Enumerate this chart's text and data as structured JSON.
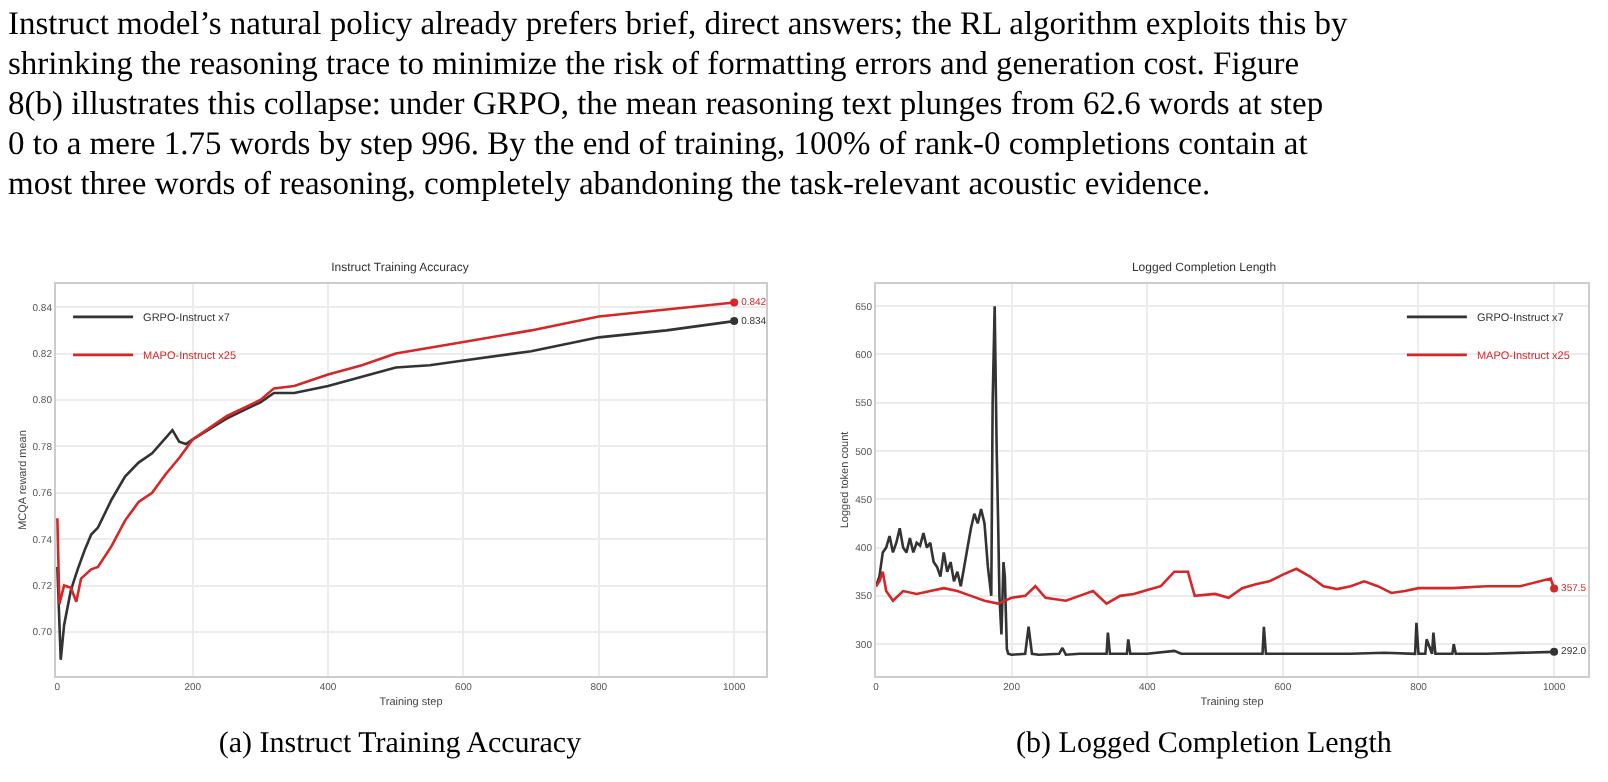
{
  "chart_data": [
    {
      "type": "other",
      "annotations": [
        "Instruct model’s natural policy already prefers brief, direct answers; the RL algorithm exploits this by",
        "shrinking the reasoning trace to minimize the risk of formatting errors and generation cost. Figure",
        "8(b) illustrates this collapse: under GRPO, the mean reasoning text plunges from 62.6 words at step",
        "0 to a mere 1.75 words by step 996. By the end of training, 100% of rank-0 completions contain at",
        "most three words of reasoning, completely abandoning the task-relevant acoustic evidence."
      ]
    },
    {
      "type": "line",
      "title": "Instruct Training Accuracy",
      "xlabel": "Training step",
      "ylabel": "MCQA reward mean",
      "annotations": [
        "(a) Instruct Training Accuracy"
      ],
      "xlim": [
        -2,
        1047
      ],
      "xticks": [
        0,
        200,
        400,
        600,
        800,
        1000
      ],
      "ylim": [
        0.681,
        0.85
      ],
      "yticks": [
        {
          "value": 0.7,
          "label": "0.70"
        },
        {
          "value": 0.72,
          "label": "0.72"
        },
        {
          "value": 0.74,
          "label": "0.74"
        },
        {
          "value": 0.76,
          "label": "0.76"
        },
        {
          "value": 0.78,
          "label": "0.78"
        },
        {
          "value": 0.8,
          "label": "0.80"
        },
        {
          "value": 0.82,
          "label": "0.82"
        },
        {
          "value": 0.84,
          "label": "0.84"
        }
      ],
      "grid": true,
      "legend": "top left",
      "line_style": "solid",
      "series": [
        {
          "name": "GRPO-Instruct x7",
          "color": "#333333",
          "x": [
            0,
            5,
            10,
            20,
            30,
            40,
            50,
            60,
            80,
            100,
            120,
            140,
            170,
            180,
            190,
            200,
            250,
            300,
            320,
            350,
            400,
            450,
            500,
            550,
            600,
            700,
            800,
            900,
            1000
          ],
          "values": [
            0.728,
            0.688,
            0.703,
            0.718,
            0.727,
            0.735,
            0.742,
            0.745,
            0.757,
            0.767,
            0.773,
            0.777,
            0.787,
            0.782,
            0.781,
            0.783,
            0.792,
            0.799,
            0.803,
            0.803,
            0.806,
            0.81,
            0.814,
            0.815,
            0.817,
            0.821,
            0.827,
            0.83,
            0.834
          ],
          "value_labels": [
            null,
            null,
            null,
            null,
            null,
            null,
            null,
            null,
            null,
            null,
            null,
            null,
            null,
            null,
            null,
            null,
            null,
            null,
            null,
            null,
            null,
            null,
            null,
            null,
            null,
            null,
            null,
            null,
            "0.834"
          ]
        },
        {
          "name": "MAPO-Instruct x25",
          "color": "#d62728",
          "x": [
            0,
            3,
            10,
            20,
            28,
            35,
            50,
            60,
            80,
            100,
            120,
            140,
            160,
            180,
            200,
            250,
            300,
            320,
            350,
            400,
            450,
            500,
            600,
            700,
            800,
            900,
            1000
          ],
          "values": [
            0.749,
            0.712,
            0.72,
            0.719,
            0.713,
            0.723,
            0.727,
            0.728,
            0.737,
            0.748,
            0.756,
            0.76,
            0.768,
            0.775,
            0.783,
            0.793,
            0.8,
            0.805,
            0.806,
            0.811,
            0.815,
            0.82,
            0.825,
            0.83,
            0.836,
            0.839,
            0.842
          ],
          "value_labels": [
            null,
            null,
            null,
            null,
            null,
            null,
            null,
            null,
            null,
            null,
            null,
            null,
            null,
            null,
            null,
            null,
            null,
            null,
            null,
            null,
            null,
            null,
            null,
            null,
            null,
            null,
            "0.842"
          ]
        }
      ]
    },
    {
      "type": "line",
      "title": "Logged Completion Length",
      "xlabel": "Training step",
      "ylabel": "Logged token count",
      "annotations": [
        "(b) Logged Completion Length"
      ],
      "xlim": [
        0,
        1050
      ],
      "xticks": [
        0,
        200,
        400,
        600,
        800,
        1000
      ],
      "ylim": [
        267,
        673
      ],
      "yticks": [
        300,
        350,
        400,
        450,
        500,
        550,
        600,
        650
      ],
      "grid": true,
      "legend": "top right",
      "line_style": "solid",
      "series": [
        {
          "name": "GRPO-Instruct x7",
          "color": "#333333",
          "x": [
            0,
            5,
            10,
            15,
            20,
            25,
            30,
            35,
            40,
            45,
            50,
            55,
            60,
            65,
            70,
            75,
            80,
            85,
            90,
            95,
            100,
            105,
            110,
            115,
            120,
            125,
            130,
            135,
            140,
            145,
            150,
            155,
            160,
            165,
            170,
            172,
            175,
            178,
            180,
            182,
            185,
            188,
            190,
            193,
            195,
            200,
            220,
            225,
            230,
            240,
            270,
            275,
            280,
            300,
            340,
            342,
            345,
            370,
            372,
            375,
            400,
            440,
            450,
            500,
            570,
            572,
            575,
            600,
            700,
            750,
            795,
            797,
            800,
            810,
            812,
            820,
            822,
            825,
            850,
            852,
            855,
            900,
            1000
          ],
          "values": [
            360,
            370,
            395,
            400,
            412,
            395,
            405,
            420,
            400,
            395,
            410,
            395,
            405,
            402,
            415,
            400,
            405,
            385,
            380,
            370,
            395,
            375,
            385,
            365,
            375,
            360,
            380,
            400,
            420,
            435,
            425,
            440,
            425,
            380,
            350,
            550,
            650,
            500,
            430,
            350,
            310,
            385,
            370,
            295,
            290,
            289,
            290,
            318,
            290,
            289,
            290,
            296,
            289,
            290,
            290,
            312,
            290,
            290,
            305,
            290,
            290,
            293,
            290,
            290,
            290,
            318,
            290,
            290,
            290,
            291,
            290,
            322,
            290,
            290,
            305,
            290,
            312,
            290,
            290,
            300,
            290,
            290,
            292
          ],
          "value_labels": [
            null,
            null,
            null,
            null,
            null,
            null,
            null,
            null,
            null,
            null,
            null,
            null,
            null,
            null,
            null,
            null,
            null,
            null,
            null,
            null,
            null,
            null,
            null,
            null,
            null,
            null,
            null,
            null,
            null,
            null,
            null,
            null,
            null,
            null,
            null,
            null,
            null,
            null,
            null,
            null,
            null,
            null,
            null,
            null,
            null,
            null,
            null,
            null,
            null,
            null,
            null,
            null,
            null,
            null,
            null,
            null,
            null,
            null,
            null,
            null,
            null,
            null,
            null,
            null,
            null,
            null,
            null,
            null,
            null,
            null,
            null,
            null,
            null,
            null,
            null,
            null,
            null,
            null,
            null,
            null,
            null,
            null,
            "292.0"
          ]
        },
        {
          "name": "MAPO-Instruct x25",
          "color": "#d62728",
          "x": [
            0,
            5,
            10,
            15,
            25,
            40,
            60,
            80,
            100,
            120,
            140,
            160,
            180,
            200,
            220,
            235,
            250,
            280,
            300,
            320,
            340,
            360,
            380,
            400,
            420,
            440,
            460,
            470,
            500,
            520,
            540,
            560,
            580,
            600,
            620,
            640,
            660,
            680,
            700,
            720,
            740,
            760,
            780,
            800,
            850,
            900,
            950,
            995,
            1000
          ],
          "values": [
            360,
            365,
            375,
            355,
            345,
            355,
            352,
            355,
            358,
            355,
            350,
            345,
            342,
            348,
            350,
            360,
            348,
            345,
            350,
            355,
            342,
            350,
            352,
            356,
            360,
            375,
            375,
            350,
            352,
            348,
            358,
            362,
            365,
            372,
            378,
            370,
            360,
            357,
            360,
            365,
            360,
            353,
            355,
            358,
            358,
            360,
            360,
            368,
            357.5
          ],
          "value_labels": [
            null,
            null,
            null,
            null,
            null,
            null,
            null,
            null,
            null,
            null,
            null,
            null,
            null,
            null,
            null,
            null,
            null,
            null,
            null,
            null,
            null,
            null,
            null,
            null,
            null,
            null,
            null,
            null,
            null,
            null,
            null,
            null,
            null,
            null,
            null,
            null,
            null,
            null,
            null,
            null,
            null,
            null,
            null,
            null,
            null,
            null,
            null,
            null,
            "357.5"
          ]
        }
      ]
    }
  ]
}
